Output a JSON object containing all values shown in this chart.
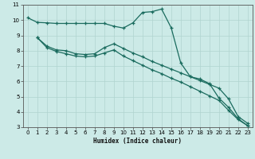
{
  "xlabel": "Humidex (Indice chaleur)",
  "ylabel": "",
  "xlim": [
    -0.5,
    23.5
  ],
  "ylim": [
    3,
    11
  ],
  "xticks": [
    0,
    1,
    2,
    3,
    4,
    5,
    6,
    7,
    8,
    9,
    10,
    11,
    12,
    13,
    14,
    15,
    16,
    17,
    18,
    19,
    20,
    21,
    22,
    23
  ],
  "yticks": [
    3,
    4,
    5,
    6,
    7,
    8,
    9,
    10,
    11
  ],
  "bg_color": "#cceae7",
  "line_color": "#1a6b5e",
  "grid_color": "#b0d4cf",
  "line1_x": [
    0,
    1,
    2,
    3,
    4,
    5,
    6,
    7,
    8,
    9,
    10,
    11,
    12,
    13,
    14,
    15,
    16,
    17,
    18,
    19,
    20,
    21,
    22,
    23
  ],
  "line1_y": [
    10.15,
    9.85,
    9.82,
    9.78,
    9.78,
    9.78,
    9.78,
    9.78,
    9.78,
    9.6,
    9.48,
    9.82,
    10.5,
    10.55,
    10.72,
    9.5,
    7.2,
    6.3,
    6.15,
    5.85,
    4.9,
    4.3,
    3.55,
    3.1
  ],
  "line2_x": [
    1,
    2,
    3,
    4,
    5,
    6,
    7,
    8,
    9,
    10,
    11,
    12,
    13,
    14,
    15,
    16,
    17,
    18,
    19,
    20,
    21,
    22,
    23
  ],
  "line2_y": [
    8.85,
    8.3,
    8.05,
    8.0,
    7.8,
    7.75,
    7.8,
    8.2,
    8.45,
    8.15,
    7.85,
    7.6,
    7.3,
    7.05,
    6.8,
    6.55,
    6.3,
    6.05,
    5.8,
    5.55,
    4.85,
    3.7,
    3.25
  ],
  "line3_x": [
    1,
    2,
    3,
    4,
    5,
    6,
    7,
    8,
    9,
    10,
    11,
    12,
    13,
    14,
    15,
    16,
    17,
    18,
    19,
    20,
    21,
    22,
    23
  ],
  "line3_y": [
    8.85,
    8.2,
    7.95,
    7.8,
    7.65,
    7.6,
    7.65,
    7.85,
    8.05,
    7.65,
    7.35,
    7.05,
    6.75,
    6.5,
    6.2,
    5.95,
    5.65,
    5.35,
    5.05,
    4.75,
    4.1,
    3.5,
    3.1
  ]
}
